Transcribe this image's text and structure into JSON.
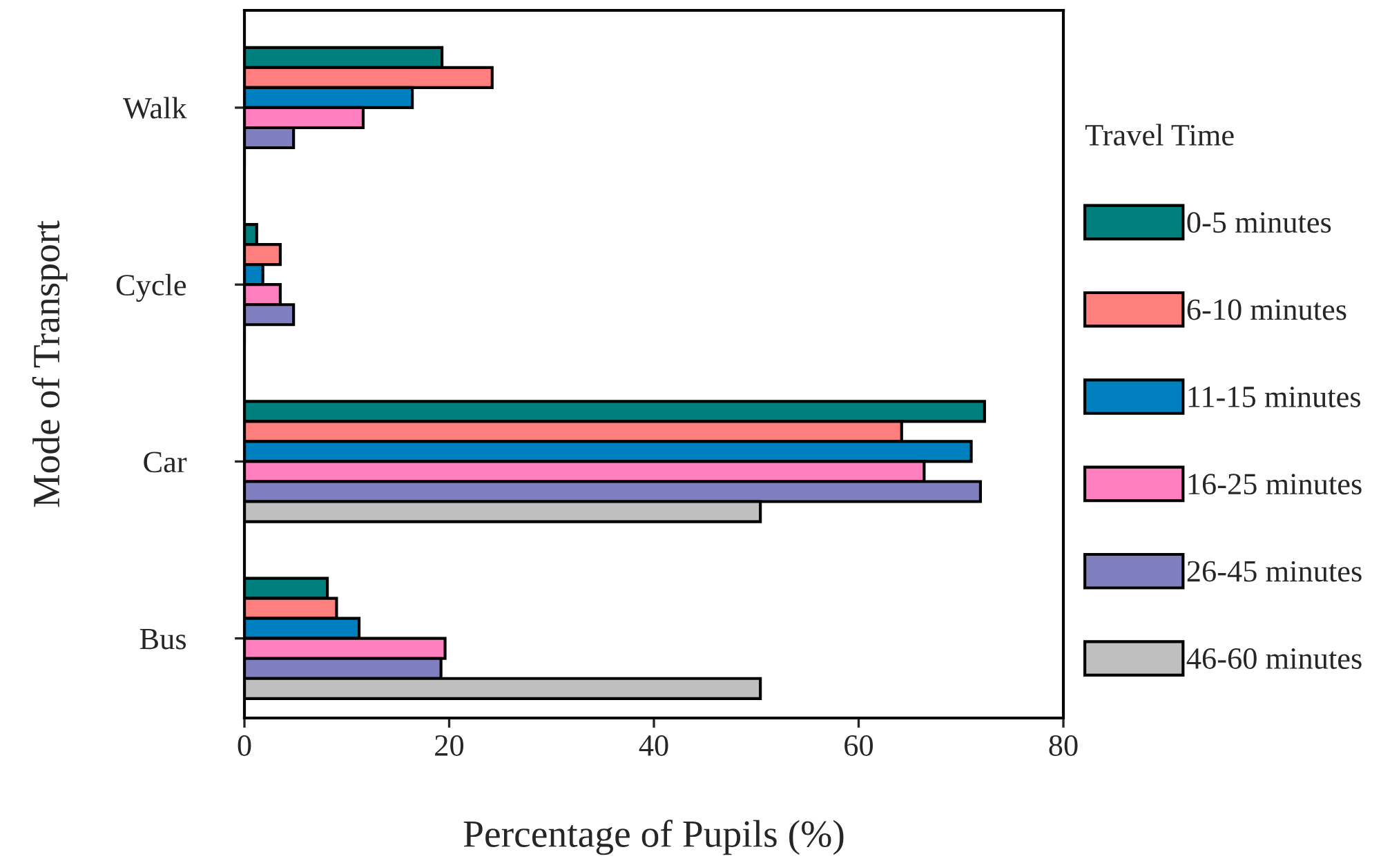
{
  "chart_data": {
    "type": "bar",
    "orientation": "horizontal",
    "xlabel": "Percentage of Pupils (%)",
    "ylabel": "Mode of Transport",
    "legend_title": "Travel Time",
    "legend": "right",
    "grid": false,
    "categories": [
      "Walk",
      "Cycle",
      "Car",
      "Bus"
    ],
    "xlim": [
      0,
      80
    ],
    "xticks": [
      0,
      20,
      40,
      60,
      80
    ],
    "series": [
      {
        "name": "0-5 minutes",
        "color": "#007f7f",
        "values": [
          19.3,
          1.2,
          72.3,
          8.1
        ]
      },
      {
        "name": "6-10 minutes",
        "color": "#ff7f7f",
        "values": [
          24.2,
          3.5,
          64.2,
          9.0
        ]
      },
      {
        "name": "11-15 minutes",
        "color": "#007fbf",
        "values": [
          16.4,
          1.8,
          71.0,
          11.2
        ]
      },
      {
        "name": "16-25 minutes",
        "color": "#ff7fbf",
        "values": [
          11.6,
          3.5,
          66.4,
          19.6
        ]
      },
      {
        "name": "26-45 minutes",
        "color": "#7f7fbf",
        "values": [
          4.8,
          4.8,
          71.9,
          19.2
        ]
      },
      {
        "name": "46-60 minutes",
        "color": "#bfbfbf",
        "values": [
          0,
          0,
          50.4,
          50.4
        ]
      }
    ]
  }
}
